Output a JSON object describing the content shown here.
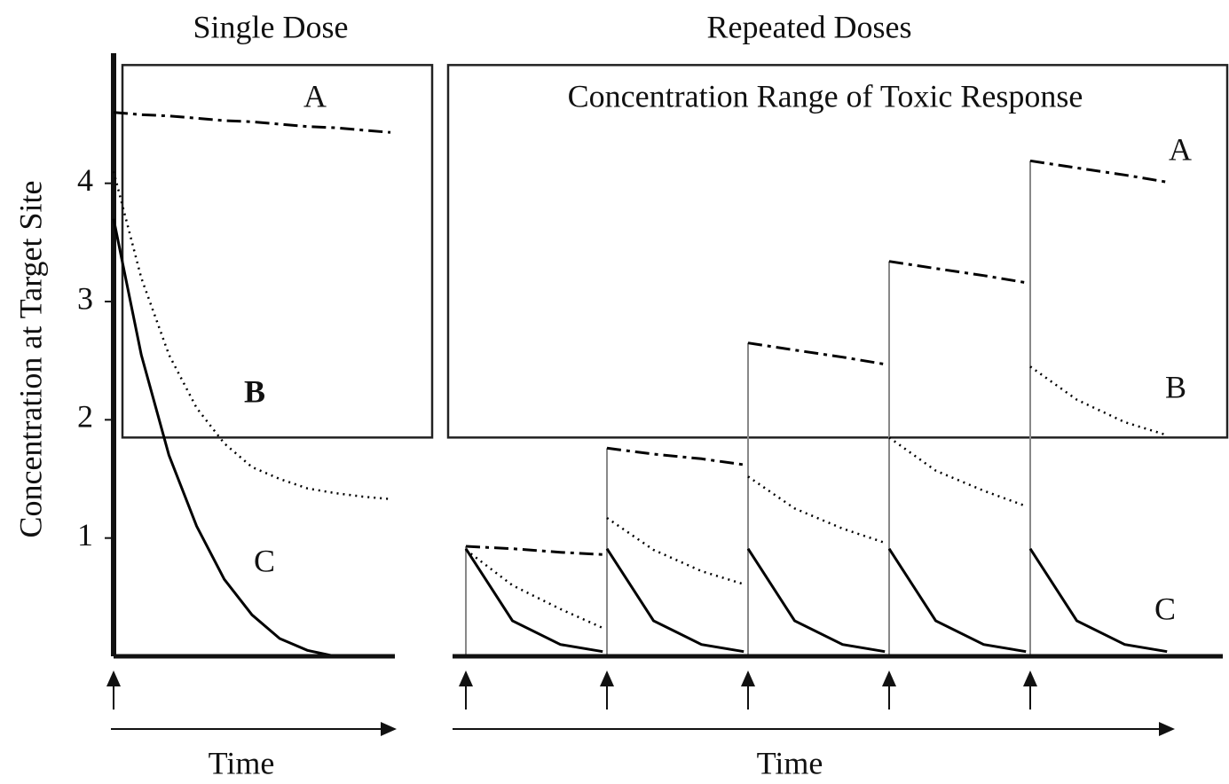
{
  "chart_data": [
    {
      "type": "line",
      "title": "Single Dose",
      "x_label": "Time",
      "y_label": "Concentration at Target Site",
      "xlim": [
        0,
        10
      ],
      "ylim": [
        0,
        5.1
      ],
      "yticks": [
        1,
        2,
        3,
        4
      ],
      "toxic_range": [
        1.85,
        5.0
      ],
      "dose_times": [
        0
      ],
      "x": [
        0,
        1,
        2,
        3,
        4,
        5,
        6,
        7,
        8,
        9,
        10
      ],
      "series": [
        {
          "name": "A",
          "color": "#000000",
          "dash": "dashdot",
          "values": [
            4.6,
            4.58,
            4.57,
            4.55,
            4.53,
            4.52,
            4.5,
            4.48,
            4.47,
            4.45,
            4.43
          ]
        },
        {
          "name": "B",
          "color": "#000000",
          "dash": "dotted",
          "values": [
            4.1,
            3.2,
            2.55,
            2.1,
            1.8,
            1.6,
            1.5,
            1.42,
            1.38,
            1.35,
            1.33
          ]
        },
        {
          "name": "C",
          "color": "#000000",
          "dash": "solid",
          "values": [
            3.7,
            2.55,
            1.7,
            1.1,
            0.65,
            0.35,
            0.15,
            0.05,
            0,
            0,
            0
          ]
        }
      ]
    },
    {
      "type": "line",
      "title": "Repeated Doses",
      "x_label": "Time",
      "annotation": "Concentration Range of Toxic Response",
      "xlim": [
        0,
        5
      ],
      "ylim": [
        0,
        5.1
      ],
      "toxic_range": [
        1.85,
        5.0
      ],
      "dose_times": [
        0,
        1,
        2,
        3,
        4
      ],
      "x": [
        0,
        0.33,
        0.67,
        0.97,
        0.985,
        1,
        1.33,
        1.67,
        1.97,
        1.985,
        2,
        2.33,
        2.67,
        2.97,
        2.985,
        3,
        3.33,
        3.67,
        3.97,
        3.985,
        4,
        4.33,
        4.67,
        4.97
      ],
      "series": [
        {
          "name": "A",
          "color": "#000000",
          "dash": "dashdot",
          "values": [
            0.93,
            0.91,
            0.88,
            0.86,
            null,
            1.76,
            1.71,
            1.67,
            1.62,
            null,
            2.65,
            2.59,
            2.53,
            2.47,
            null,
            3.34,
            3.28,
            3.22,
            3.16,
            null,
            4.19,
            4.13,
            4.07,
            4.01
          ]
        },
        {
          "name": "B",
          "color": "#000000",
          "dash": "dotted",
          "values": [
            0.9,
            0.6,
            0.4,
            0.24,
            null,
            1.17,
            0.9,
            0.72,
            0.61,
            null,
            1.52,
            1.25,
            1.08,
            0.96,
            null,
            1.85,
            1.57,
            1.4,
            1.27,
            null,
            2.45,
            2.17,
            1.98,
            1.87
          ]
        },
        {
          "name": "C",
          "color": "#000000",
          "dash": "solid",
          "values": [
            0.91,
            0.3,
            0.1,
            0.04,
            null,
            0.91,
            0.3,
            0.1,
            0.04,
            null,
            0.91,
            0.3,
            0.1,
            0.04,
            null,
            0.91,
            0.3,
            0.1,
            0.04,
            null,
            0.91,
            0.3,
            0.1,
            0.04
          ]
        }
      ]
    }
  ]
}
